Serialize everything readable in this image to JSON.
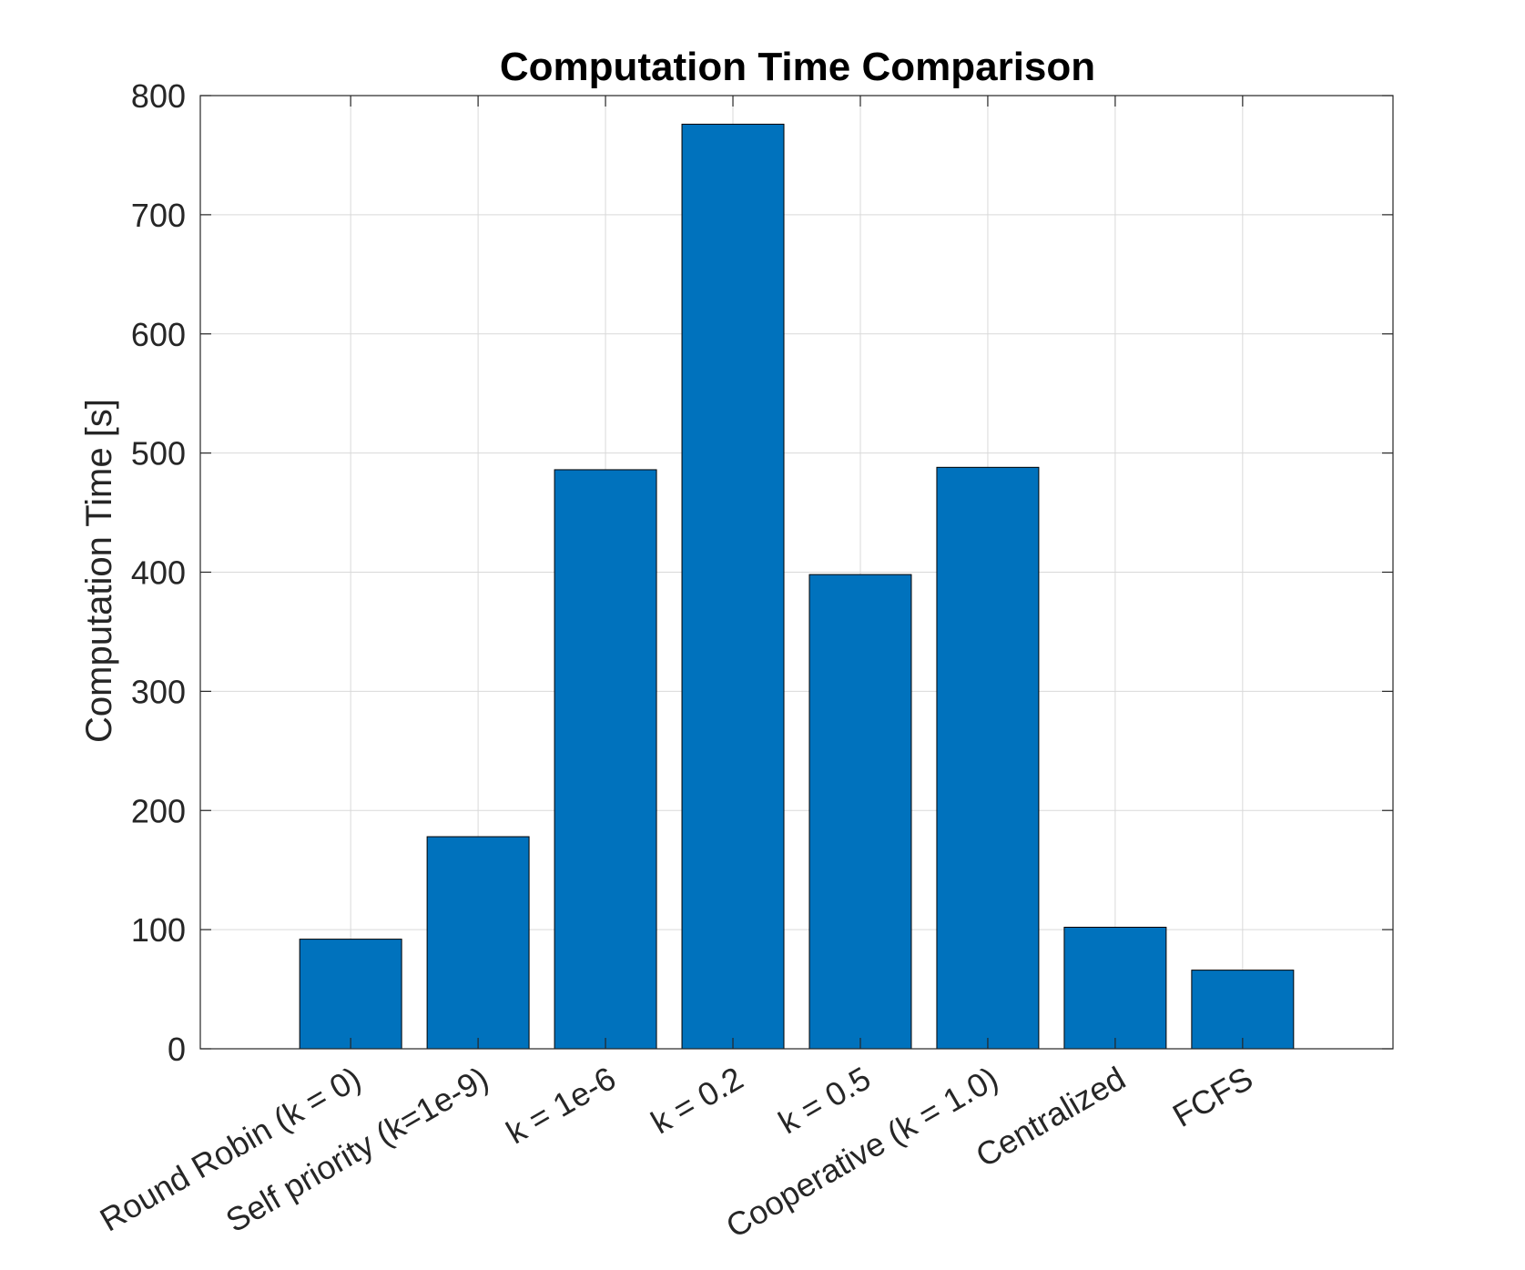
{
  "chart_data": {
    "type": "bar",
    "title": "Computation Time Comparison",
    "xlabel": "",
    "ylabel": "Computation Time [s]",
    "categories": [
      "Round Robin (k = 0)",
      "Self priority (k=1e-9)",
      "k = 1e-6",
      "k = 0.2",
      "k = 0.5",
      "Cooperative (k = 1.0)",
      "Centralized",
      "FCFS"
    ],
    "values": [
      92,
      178,
      486,
      776,
      398,
      488,
      102,
      66
    ],
    "ylim": [
      0,
      800
    ],
    "yticks": [
      0,
      100,
      200,
      300,
      400,
      500,
      600,
      700,
      800
    ],
    "ytick_labels": [
      "0",
      "100",
      "200",
      "300",
      "400",
      "500",
      "600",
      "700",
      "800"
    ],
    "grid": true,
    "bar_color": "#0072BD",
    "bar_edge_color": "#000000",
    "legend": "none"
  }
}
